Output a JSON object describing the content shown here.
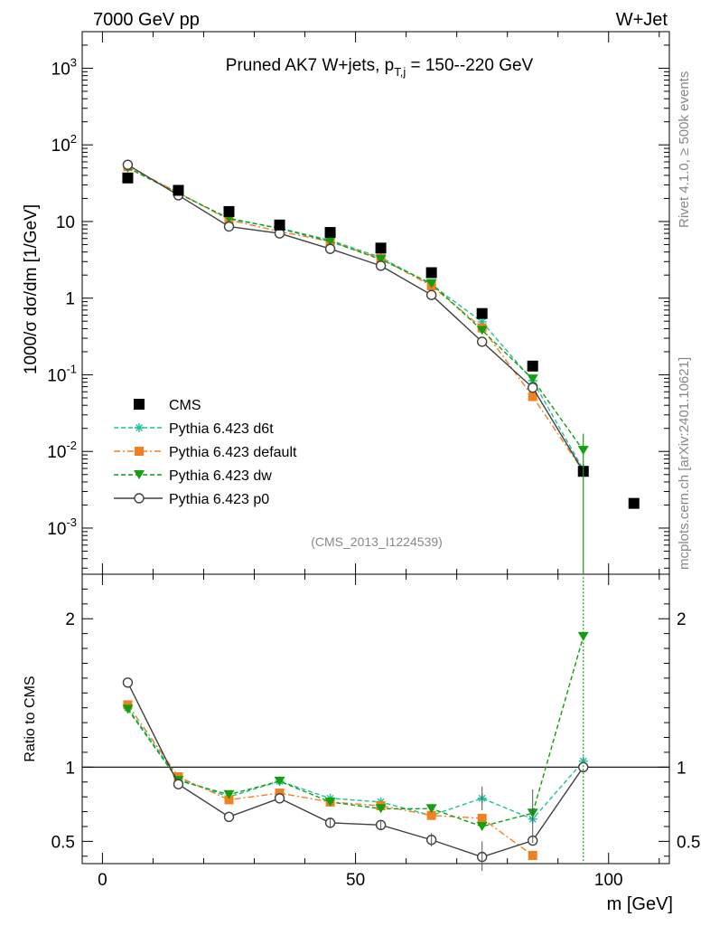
{
  "header": {
    "energy_label": "7000 GeV pp",
    "process_label": "W+Jet",
    "side_rivet": "Rivet 4.1.0, ≥ 500k events",
    "side_mcplots": "mcplots.cern.ch [arXiv:2401.10621]"
  },
  "chart_data": [
    {
      "type": "scatter",
      "panel": "main",
      "title_prefix": "Pruned AK7 W+jets, p",
      "title_sub": "T,j",
      "title_suffix": " = 150--220 GeV",
      "ylabel": "1000/σ  dσ/dm [1/GeV]",
      "yscale": "log",
      "ylim": [
        0.00025,
        3000
      ],
      "xlim": [
        -4,
        112
      ],
      "xlabel": "m [GeV]",
      "analysis_tag": "(CMS_2013_I1224539)",
      "ytick_labels": [
        "10^-3",
        "10^-2",
        "10^-1",
        "1",
        "10",
        "10^2",
        "10^3"
      ],
      "series": [
        {
          "name": "CMS",
          "color": "#000000",
          "marker": "square",
          "line": "none",
          "x": [
            5,
            15,
            25,
            35,
            45,
            55,
            65,
            75,
            85,
            95,
            105
          ],
          "y": [
            37,
            25.5,
            13.5,
            9.0,
            7.2,
            4.5,
            2.15,
            0.63,
            0.13,
            0.0055,
            0.0021
          ]
        },
        {
          "name": "Pythia 6.423 d6t",
          "color": "#20c0a0",
          "marker": "star",
          "line": "dashed",
          "x": [
            5,
            15,
            25,
            35,
            45,
            55,
            65,
            75,
            85,
            95
          ],
          "y": [
            51,
            23.5,
            10.8,
            8.2,
            5.7,
            3.4,
            1.5,
            0.49,
            0.084,
            0.0058
          ]
        },
        {
          "name": "Pythia 6.423 default",
          "color": "#f08020",
          "marker": "square",
          "line": "dashdot",
          "x": [
            5,
            15,
            25,
            35,
            45,
            55,
            65,
            75,
            85,
            95
          ],
          "y": [
            52,
            23.8,
            10.5,
            7.4,
            5.5,
            3.3,
            1.45,
            0.41,
            0.052,
            0.0055
          ]
        },
        {
          "name": "Pythia 6.423 dw",
          "color": "#10a010",
          "marker": "triangle-down",
          "line": "dashed",
          "x": [
            5,
            15,
            25,
            35,
            45,
            55,
            65,
            75,
            85,
            95
          ],
          "y": [
            50,
            23.2,
            11.0,
            8.1,
            5.5,
            3.2,
            1.55,
            0.38,
            0.088,
            0.0103
          ]
        },
        {
          "name": "Pythia 6.423 p0",
          "color": "#404040",
          "marker": "circle-open",
          "line": "solid",
          "x": [
            5,
            15,
            25,
            35,
            45,
            55,
            65,
            75,
            85,
            95
          ],
          "y": [
            55,
            22.0,
            8.6,
            7.0,
            4.4,
            2.65,
            1.1,
            0.27,
            0.068,
            0.0055
          ]
        }
      ]
    },
    {
      "type": "line",
      "panel": "ratio",
      "ylabel": "Ratio to CMS",
      "ylim": [
        0.35,
        2.3
      ],
      "yticks": [
        0.5,
        1,
        2
      ],
      "ytick_labels": [
        "0.5",
        "1",
        "2"
      ],
      "xticks": [
        0,
        50,
        100
      ],
      "xtick_labels": [
        "0",
        "50",
        "100"
      ],
      "reference_line": 1,
      "series": [
        {
          "name": "Pythia 6.423 d6t",
          "x": [
            5,
            15,
            25,
            35,
            45,
            55,
            65,
            75,
            85,
            95
          ],
          "y": [
            1.4,
            0.92,
            0.8,
            0.905,
            0.79,
            0.765,
            0.675,
            0.79,
            0.65,
            1.04
          ]
        },
        {
          "name": "Pythia 6.423 default",
          "x": [
            5,
            15,
            25,
            35,
            45,
            55,
            65,
            75,
            85
          ],
          "y": [
            1.42,
            0.935,
            0.78,
            0.825,
            0.765,
            0.74,
            0.675,
            0.655,
            0.405
          ]
        },
        {
          "name": "Pythia 6.423 dw",
          "x": [
            5,
            15,
            25,
            35,
            45,
            55,
            65,
            75,
            85,
            95
          ],
          "y": [
            1.39,
            0.91,
            0.815,
            0.905,
            0.765,
            0.72,
            0.72,
            0.6,
            0.69,
            1.88
          ]
        },
        {
          "name": "Pythia 6.423 p0",
          "x": [
            5,
            15,
            25,
            35,
            45,
            55,
            65,
            75,
            85,
            95
          ],
          "y": [
            1.57,
            0.885,
            0.665,
            0.79,
            0.625,
            0.61,
            0.51,
            0.395,
            0.505,
            1.0
          ]
        }
      ]
    }
  ]
}
